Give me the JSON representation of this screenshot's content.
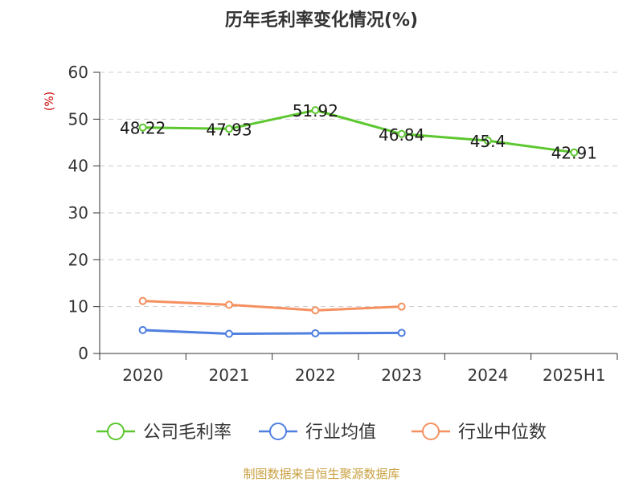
{
  "chart_data": {
    "type": "line",
    "title": "历年毛利率变化情况(%)",
    "ylabel": "(%)",
    "categories": [
      "2020",
      "2021",
      "2022",
      "2023",
      "2024",
      "2025H1"
    ],
    "yticks": [
      "0",
      "10",
      "20",
      "30",
      "40",
      "50",
      "60"
    ],
    "ylim": [
      0,
      60
    ],
    "grid": true,
    "legend_position": "bottom",
    "series": [
      {
        "name": "公司毛利率",
        "color": "#5cc72f",
        "values": [
          48.22,
          47.93,
          51.92,
          46.84,
          45.4,
          42.91
        ],
        "labels": [
          "48.22",
          "47.93",
          "51.92",
          "46.84",
          "45.4",
          "42.91"
        ]
      },
      {
        "name": "行业均值",
        "color": "#4f7fe0",
        "values": [
          5.0,
          4.2,
          4.3,
          4.4,
          null,
          null
        ]
      },
      {
        "name": "行业中位数",
        "color": "#f59060",
        "values": [
          11.2,
          10.4,
          9.2,
          10.0,
          null,
          null
        ]
      }
    ]
  },
  "source": "制图数据来自恒生聚源数据库",
  "colors": {
    "unit": "#cc0000",
    "source": "#c8a040",
    "grid": "#cccccc",
    "axis": "#333333"
  }
}
